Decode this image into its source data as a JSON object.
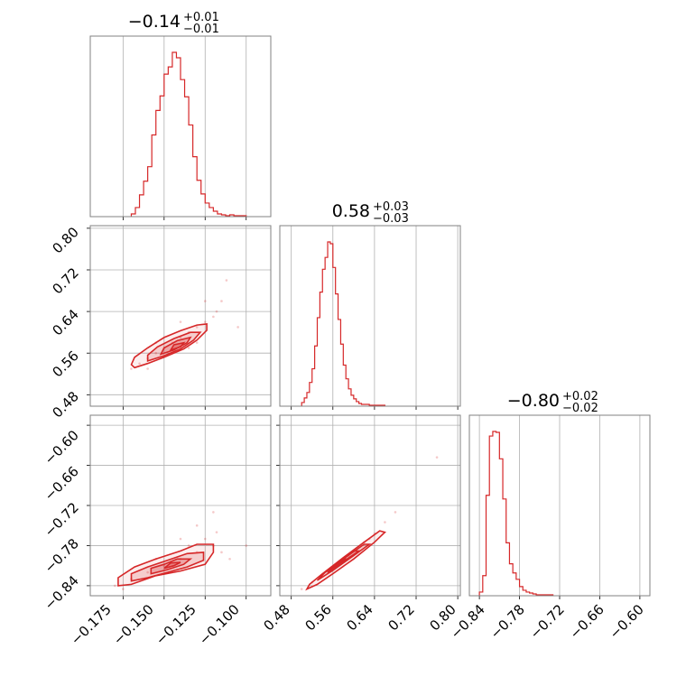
{
  "figure": {
    "panel_titles": [
      {
        "value": "−0.14",
        "plus": "+0.01",
        "minus": "−0.01"
      },
      {
        "value": "0.58",
        "plus": "+0.03",
        "minus": "−0.03"
      },
      {
        "value": "−0.80",
        "plus": "+0.02",
        "minus": "−0.02"
      }
    ],
    "ticks": {
      "p1": [
        "−0.175",
        "−0.150",
        "−0.125",
        "−0.100"
      ],
      "p2": [
        "0.48",
        "0.56",
        "0.64",
        "0.72",
        "0.80"
      ],
      "p3": [
        "−0.84",
        "−0.78",
        "−0.72",
        "−0.66",
        "−0.60"
      ]
    }
  },
  "colors": {
    "accent": "#d62728",
    "grid": "#b0b0b0",
    "frame": "#808080"
  },
  "chart_data": {
    "type": "corner",
    "parameters": [
      {
        "median": -0.14,
        "err_plus": 0.01,
        "err_minus": 0.01,
        "range": [
          -0.195,
          -0.085
        ],
        "ticks": [
          -0.175,
          -0.15,
          -0.125,
          -0.1
        ]
      },
      {
        "median": 0.58,
        "err_plus": 0.03,
        "err_minus": 0.03,
        "range": [
          0.458,
          0.805
        ],
        "ticks": [
          0.48,
          0.56,
          0.64,
          0.72,
          0.8
        ]
      },
      {
        "median": -0.8,
        "err_plus": 0.02,
        "err_minus": 0.02,
        "range": [
          -0.855,
          -0.585
        ],
        "ticks": [
          -0.84,
          -0.78,
          -0.72,
          -0.66,
          -0.6
        ]
      }
    ],
    "grid": true,
    "marginals": [
      {
        "type": "histogram",
        "param": 0,
        "bin_edges": [
          -0.17,
          -0.1675,
          -0.165,
          -0.1625,
          -0.16,
          -0.1575,
          -0.155,
          -0.1525,
          -0.15,
          -0.1475,
          -0.145,
          -0.1425,
          -0.14,
          -0.1375,
          -0.135,
          -0.1325,
          -0.13,
          -0.1275,
          -0.125,
          -0.1225,
          -0.12,
          -0.1175,
          -0.115,
          -0.1125,
          -0.11,
          -0.1075,
          -0.105,
          -0.1025,
          -0.1
        ],
        "counts": [
          3,
          10,
          24,
          39,
          55,
          90,
          117,
          133,
          157,
          165,
          181,
          175,
          151,
          132,
          101,
          66,
          40,
          25,
          15,
          10,
          6,
          3,
          2,
          1,
          2,
          1,
          1,
          1
        ]
      },
      {
        "type": "histogram",
        "param": 1,
        "bin_edges": [
          0.5,
          0.505,
          0.51,
          0.515,
          0.52,
          0.525,
          0.53,
          0.535,
          0.54,
          0.545,
          0.55,
          0.555,
          0.56,
          0.565,
          0.57,
          0.575,
          0.58,
          0.585,
          0.59,
          0.595,
          0.6,
          0.605,
          0.61,
          0.615,
          0.62,
          0.625,
          0.63,
          0.635,
          0.64,
          0.645,
          0.65,
          0.655,
          0.66
        ],
        "counts": [
          4,
          9,
          15,
          26,
          41,
          66,
          97,
          125,
          150,
          163,
          180,
          178,
          152,
          123,
          95,
          68,
          45,
          30,
          19,
          12,
          8,
          5,
          3,
          2,
          2,
          2,
          1,
          1,
          1,
          1,
          1,
          1
        ]
      },
      {
        "type": "histogram",
        "param": 2,
        "bin_edges": [
          -0.84,
          -0.835,
          -0.83,
          -0.825,
          -0.82,
          -0.815,
          -0.81,
          -0.805,
          -0.8,
          -0.795,
          -0.79,
          -0.785,
          -0.78,
          -0.775,
          -0.77,
          -0.765,
          -0.76,
          -0.755,
          -0.75,
          -0.745,
          -0.74,
          -0.735,
          -0.73
        ],
        "counts": [
          4,
          22,
          110,
          175,
          180,
          179,
          150,
          106,
          58,
          35,
          25,
          18,
          10,
          6,
          4,
          3,
          2,
          1,
          1,
          1,
          1,
          1
        ]
      }
    ],
    "joints": [
      {
        "type": "scatter_contour",
        "params": [
          0,
          1
        ],
        "samples": [
          [
            -0.17,
            0.53
          ],
          [
            -0.165,
            0.54
          ],
          [
            -0.16,
            0.55
          ],
          [
            -0.155,
            0.56
          ],
          [
            -0.15,
            0.57
          ],
          [
            -0.145,
            0.58
          ],
          [
            -0.14,
            0.59
          ],
          [
            -0.135,
            0.6
          ],
          [
            -0.13,
            0.61
          ],
          [
            -0.125,
            0.62
          ],
          [
            -0.12,
            0.63
          ],
          [
            -0.115,
            0.66
          ],
          [
            -0.112,
            0.7
          ],
          [
            -0.105,
            0.61
          ],
          [
            -0.16,
            0.53
          ],
          [
            -0.145,
            0.56
          ],
          [
            -0.13,
            0.58
          ],
          [
            -0.125,
            0.66
          ],
          [
            -0.14,
            0.62
          ],
          [
            -0.155,
            0.58
          ],
          [
            -0.118,
            0.64
          ],
          [
            -0.135,
            0.57
          ]
        ],
        "contour_levels": [
          [
            [
              -0.168,
              0.532
            ],
            [
              -0.16,
              0.54
            ],
            [
              -0.15,
              0.552
            ],
            [
              -0.138,
              0.568
            ],
            [
              -0.13,
              0.585
            ],
            [
              -0.124,
              0.604
            ],
            [
              -0.124,
              0.616
            ],
            [
              -0.13,
              0.614
            ],
            [
              -0.14,
              0.603
            ],
            [
              -0.15,
              0.59
            ],
            [
              -0.16,
              0.57
            ],
            [
              -0.168,
              0.552
            ],
            [
              -0.17,
              0.538
            ]
          ],
          [
            [
              -0.16,
              0.545
            ],
            [
              -0.15,
              0.555
            ],
            [
              -0.14,
              0.568
            ],
            [
              -0.132,
              0.585
            ],
            [
              -0.128,
              0.6
            ],
            [
              -0.134,
              0.6
            ],
            [
              -0.144,
              0.588
            ],
            [
              -0.154,
              0.572
            ],
            [
              -0.16,
              0.556
            ]
          ],
          [
            [
              -0.152,
              0.558
            ],
            [
              -0.144,
              0.566
            ],
            [
              -0.136,
              0.58
            ],
            [
              -0.134,
              0.59
            ],
            [
              -0.142,
              0.584
            ],
            [
              -0.15,
              0.57
            ]
          ],
          [
            [
              -0.146,
              0.566
            ],
            [
              -0.14,
              0.572
            ],
            [
              -0.138,
              0.58
            ],
            [
              -0.144,
              0.576
            ]
          ]
        ]
      },
      {
        "type": "scatter_contour",
        "params": [
          0,
          2
        ],
        "samples": [
          [
            -0.18,
            -0.84
          ],
          [
            -0.17,
            -0.83
          ],
          [
            -0.16,
            -0.82
          ],
          [
            -0.15,
            -0.81
          ],
          [
            -0.14,
            -0.8
          ],
          [
            -0.13,
            -0.79
          ],
          [
            -0.12,
            -0.78
          ],
          [
            -0.125,
            -0.77
          ],
          [
            -0.115,
            -0.79
          ],
          [
            -0.12,
            -0.73
          ],
          [
            -0.1,
            -0.78
          ],
          [
            -0.14,
            -0.77
          ],
          [
            -0.13,
            -0.75
          ],
          [
            -0.155,
            -0.8
          ],
          [
            -0.175,
            -0.845
          ],
          [
            -0.11,
            -0.8
          ],
          [
            -0.135,
            -0.78
          ],
          [
            -0.118,
            -0.76
          ]
        ],
        "contour_levels": [
          [
            [
              -0.178,
              -0.84
            ],
            [
              -0.17,
              -0.838
            ],
            [
              -0.155,
              -0.825
            ],
            [
              -0.14,
              -0.818
            ],
            [
              -0.125,
              -0.808
            ],
            [
              -0.12,
              -0.79
            ],
            [
              -0.12,
              -0.778
            ],
            [
              -0.13,
              -0.778
            ],
            [
              -0.14,
              -0.788
            ],
            [
              -0.155,
              -0.8
            ],
            [
              -0.168,
              -0.812
            ],
            [
              -0.178,
              -0.828
            ]
          ],
          [
            [
              -0.17,
              -0.833
            ],
            [
              -0.16,
              -0.828
            ],
            [
              -0.148,
              -0.82
            ],
            [
              -0.136,
              -0.812
            ],
            [
              -0.126,
              -0.802
            ],
            [
              -0.126,
              -0.79
            ],
            [
              -0.136,
              -0.792
            ],
            [
              -0.148,
              -0.802
            ],
            [
              -0.16,
              -0.812
            ],
            [
              -0.17,
              -0.822
            ]
          ],
          [
            [
              -0.158,
              -0.822
            ],
            [
              -0.148,
              -0.816
            ],
            [
              -0.138,
              -0.808
            ],
            [
              -0.134,
              -0.8
            ],
            [
              -0.142,
              -0.8
            ],
            [
              -0.15,
              -0.808
            ],
            [
              -0.158,
              -0.814
            ]
          ],
          [
            [
              -0.15,
              -0.814
            ],
            [
              -0.144,
              -0.81
            ],
            [
              -0.14,
              -0.805
            ],
            [
              -0.146,
              -0.806
            ]
          ]
        ]
      },
      {
        "type": "scatter_contour",
        "params": [
          1,
          2
        ],
        "samples": [
          [
            0.5,
            -0.845
          ],
          [
            0.52,
            -0.835
          ],
          [
            0.54,
            -0.825
          ],
          [
            0.56,
            -0.812
          ],
          [
            0.58,
            -0.8
          ],
          [
            0.6,
            -0.788
          ],
          [
            0.62,
            -0.775
          ],
          [
            0.64,
            -0.762
          ],
          [
            0.66,
            -0.745
          ],
          [
            0.68,
            -0.73
          ],
          [
            0.55,
            -0.82
          ],
          [
            0.59,
            -0.795
          ],
          [
            0.63,
            -0.77
          ],
          [
            0.76,
            -0.648
          ]
        ],
        "contour_levels": [
          [
            [
              0.51,
              -0.845
            ],
            [
              0.53,
              -0.838
            ],
            [
              0.56,
              -0.822
            ],
            [
              0.6,
              -0.8
            ],
            [
              0.64,
              -0.775
            ],
            [
              0.66,
              -0.76
            ],
            [
              0.65,
              -0.758
            ],
            [
              0.62,
              -0.775
            ],
            [
              0.58,
              -0.798
            ],
            [
              0.54,
              -0.822
            ],
            [
              0.515,
              -0.838
            ]
          ],
          [
            [
              0.53,
              -0.832
            ],
            [
              0.56,
              -0.817
            ],
            [
              0.6,
              -0.795
            ],
            [
              0.63,
              -0.778
            ],
            [
              0.62,
              -0.778
            ],
            [
              0.58,
              -0.8
            ],
            [
              0.545,
              -0.82
            ]
          ],
          [
            [
              0.55,
              -0.82
            ],
            [
              0.58,
              -0.804
            ],
            [
              0.61,
              -0.788
            ],
            [
              0.6,
              -0.788
            ],
            [
              0.57,
              -0.806
            ]
          ],
          [
            [
              0.565,
              -0.81
            ],
            [
              0.585,
              -0.8
            ],
            [
              0.578,
              -0.8
            ]
          ]
        ]
      }
    ]
  }
}
